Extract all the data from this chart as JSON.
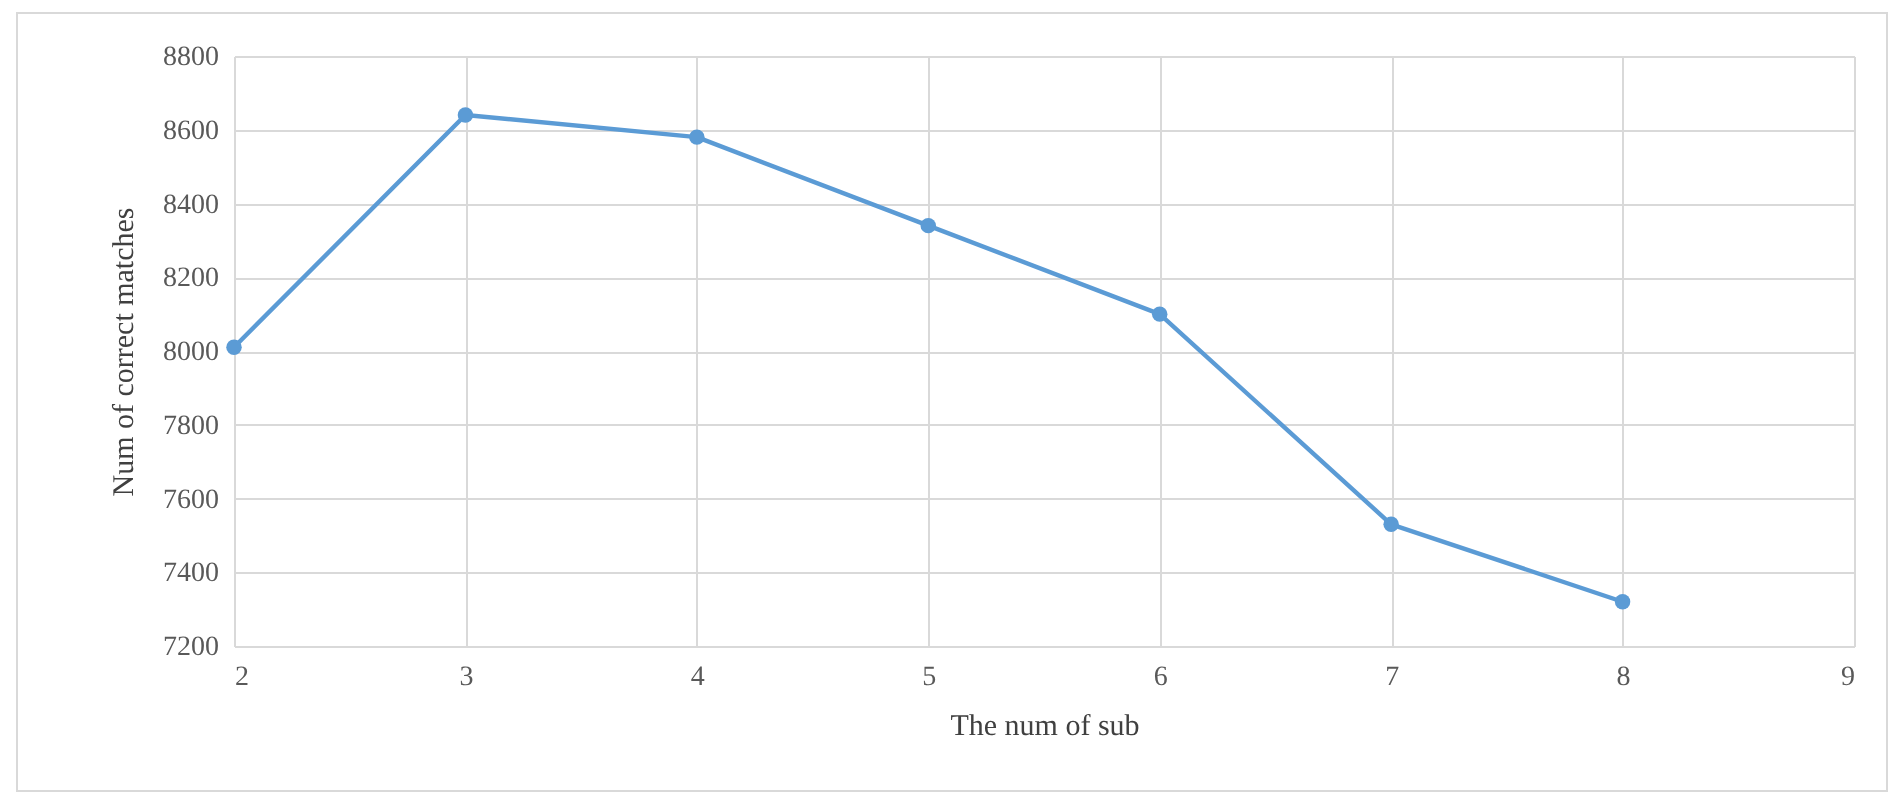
{
  "chart_data": {
    "type": "line",
    "xlabel": "The num of sub",
    "ylabel": "Num of correct matches",
    "x": [
      2,
      3,
      4,
      5,
      6,
      7,
      8
    ],
    "series": [
      {
        "color": "#5b9bd5",
        "values": [
          8010,
          8640,
          8580,
          8340,
          8100,
          7530,
          7320
        ]
      }
    ],
    "xlim": [
      2,
      9
    ],
    "xticks": [
      2,
      3,
      4,
      5,
      6,
      7,
      8,
      9
    ],
    "ylim": [
      7200,
      8800
    ],
    "yticks": [
      7200,
      7400,
      7600,
      7800,
      8000,
      8200,
      8400,
      8600,
      8800
    ],
    "grid": true,
    "marker": "circle",
    "line_style": "solid",
    "legend": false
  }
}
